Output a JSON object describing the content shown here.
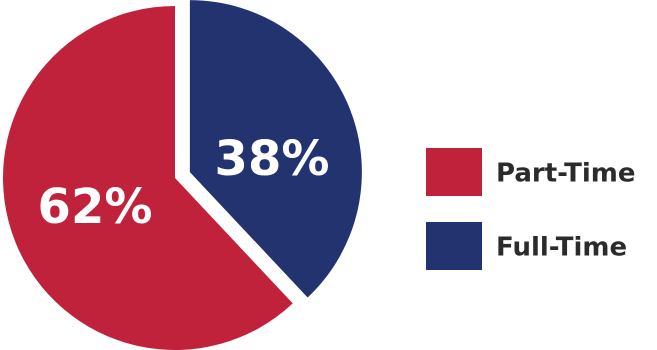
{
  "chart_data": {
    "type": "pie",
    "title": "",
    "slices": [
      {
        "name": "Part-Time",
        "value": 62,
        "label": "62%",
        "color": "#c0213b"
      },
      {
        "name": "Full-Time",
        "value": 38,
        "label": "38%",
        "color": "#233370"
      }
    ],
    "legend_position": "right",
    "legend": [
      "Part-Time",
      "Full-Time"
    ]
  }
}
